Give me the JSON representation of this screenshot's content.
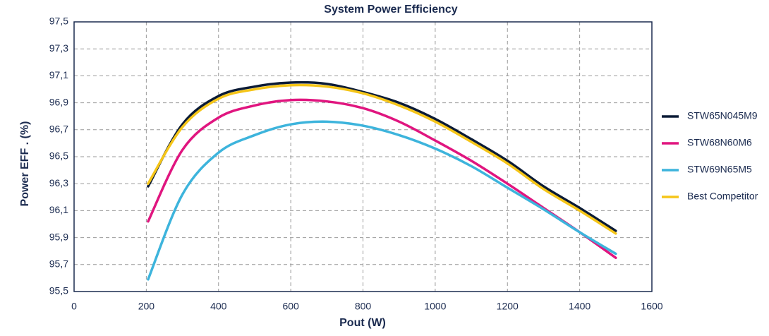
{
  "chart_data": {
    "type": "line",
    "title": "System Power Efficiency",
    "x_label": "Pout (W)",
    "y_label": "Power EFF . (%)",
    "x": [
      205,
      300,
      400,
      500,
      600,
      700,
      800,
      900,
      1000,
      1100,
      1200,
      1300,
      1400,
      1500
    ],
    "series": [
      {
        "name": "STW65N045M9",
        "color": "#0b1b36",
        "values": [
          96.28,
          96.74,
          96.95,
          97.02,
          97.05,
          97.04,
          96.98,
          96.9,
          96.78,
          96.63,
          96.47,
          96.28,
          96.12,
          95.95
        ]
      },
      {
        "name": "STW68N60M6",
        "color": "#e0157f",
        "values": [
          96.02,
          96.55,
          96.79,
          96.88,
          96.92,
          96.91,
          96.86,
          96.76,
          96.62,
          96.47,
          96.3,
          96.12,
          95.94,
          95.75
        ]
      },
      {
        "name": "STW69N65M5",
        "color": "#3db4dc",
        "values": [
          95.59,
          96.22,
          96.53,
          96.66,
          96.74,
          96.76,
          96.73,
          96.66,
          96.56,
          96.43,
          96.27,
          96.11,
          95.94,
          95.78
        ]
      },
      {
        "name": "Best Competitor",
        "color": "#f5c518",
        "values": [
          96.3,
          96.72,
          96.93,
          97.0,
          97.03,
          97.02,
          96.97,
          96.88,
          96.76,
          96.61,
          96.45,
          96.26,
          96.1,
          95.93
        ]
      }
    ],
    "xlim": [
      0,
      1600
    ],
    "xticks": [
      0,
      200,
      400,
      600,
      800,
      1000,
      1200,
      1400,
      1600
    ],
    "ylim": [
      95.5,
      97.5
    ],
    "yticks": [
      {
        "value": 95.5,
        "label": "95,5"
      },
      {
        "value": 95.7,
        "label": "95,7"
      },
      {
        "value": 95.9,
        "label": "95,9"
      },
      {
        "value": 96.1,
        "label": "96,1"
      },
      {
        "value": 96.3,
        "label": "96,3"
      },
      {
        "value": 96.5,
        "label": "96,5"
      },
      {
        "value": 96.7,
        "label": "96,7"
      },
      {
        "value": 96.9,
        "label": "96,9"
      },
      {
        "value": 97.1,
        "label": "97,1"
      },
      {
        "value": 97.3,
        "label": "97,3"
      },
      {
        "value": 97.5,
        "label": "97,5"
      }
    ],
    "grid": true,
    "legend": "right"
  }
}
